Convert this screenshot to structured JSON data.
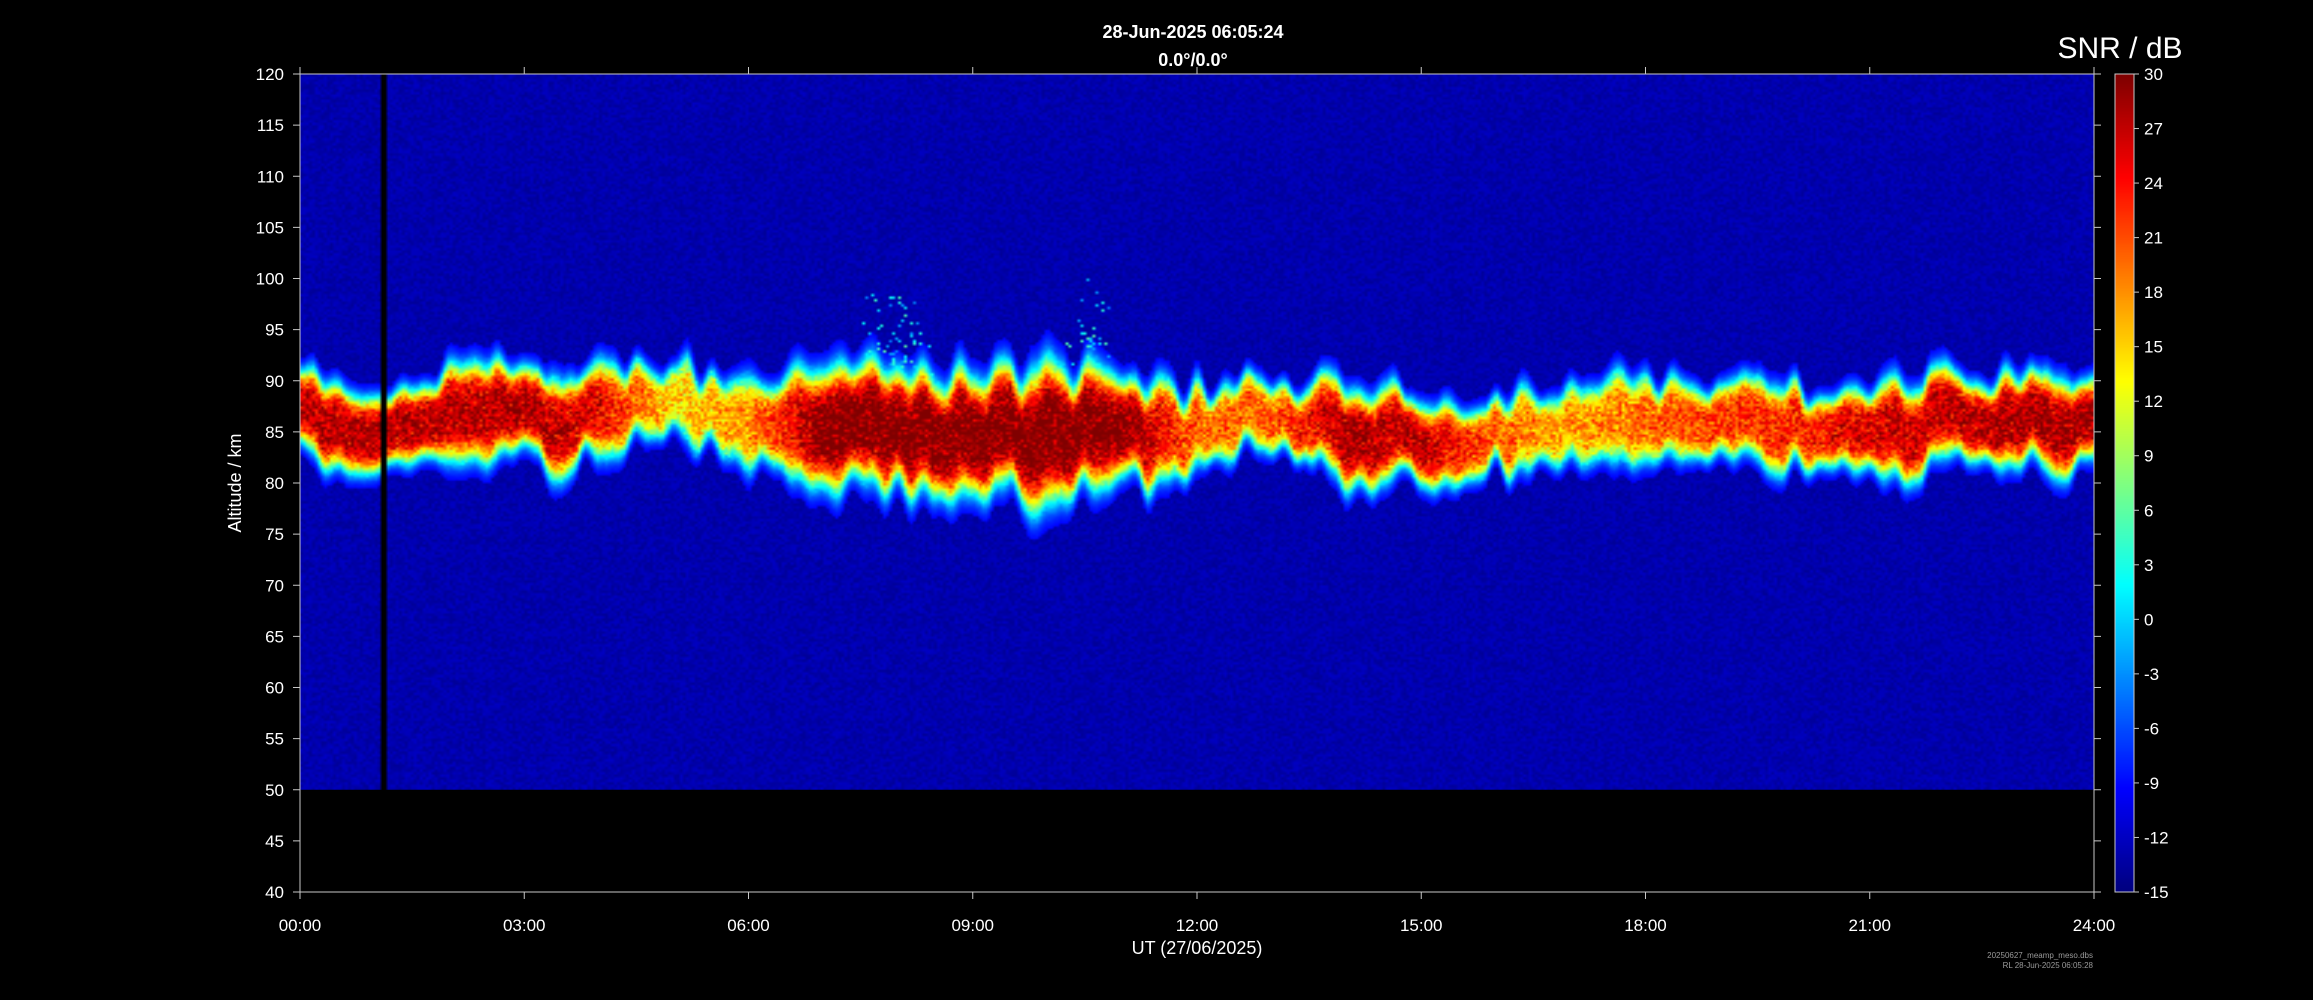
{
  "chart_data": {
    "type": "heatmap",
    "title": "28-Jun-2025 06:05:24",
    "subtitle": "0.0°/0.0°",
    "xlabel": "UT (27/06/2025)",
    "ylabel": "Altitude / km",
    "x_tick_labels": [
      "00:00",
      "03:00",
      "06:00",
      "09:00",
      "12:00",
      "15:00",
      "18:00",
      "21:00",
      "24:00"
    ],
    "x_range_hours": [
      0,
      24
    ],
    "y_ticks": [
      40,
      45,
      50,
      55,
      60,
      65,
      70,
      75,
      80,
      85,
      90,
      95,
      100,
      105,
      110,
      115,
      120
    ],
    "y_range_km": [
      40,
      120
    ],
    "data_altitude_range_km": [
      50,
      120
    ],
    "background_snr_db": -13,
    "colorbar": {
      "title": "SNR / dB",
      "range": [
        -15,
        30
      ],
      "ticks": [
        -15,
        -12,
        -9,
        -6,
        -3,
        0,
        3,
        6,
        9,
        12,
        15,
        18,
        21,
        24,
        27,
        30
      ],
      "colormap": "jet"
    },
    "data_gap_hours": [
      1.08,
      1.16
    ],
    "echo_layer": {
      "description_hours": "center altitude (km) and thickness (km) of the echo layer versus time",
      "center_alt_km": [
        [
          0.0,
          86.5
        ],
        [
          0.5,
          85.5
        ],
        [
          1.0,
          85.0
        ],
        [
          1.5,
          86.0
        ],
        [
          2.0,
          86.5
        ],
        [
          2.5,
          87.0
        ],
        [
          3.0,
          87.0
        ],
        [
          3.5,
          86.0
        ],
        [
          4.0,
          86.5
        ],
        [
          4.5,
          88.0
        ],
        [
          5.0,
          87.5
        ],
        [
          5.5,
          87.0
        ],
        [
          6.0,
          86.5
        ],
        [
          6.5,
          86.0
        ],
        [
          7.0,
          85.5
        ],
        [
          7.5,
          85.5
        ],
        [
          8.0,
          85.0
        ],
        [
          8.5,
          84.5
        ],
        [
          9.0,
          85.0
        ],
        [
          9.5,
          85.0
        ],
        [
          10.0,
          84.5
        ],
        [
          10.5,
          85.0
        ],
        [
          11.0,
          85.0
        ],
        [
          11.5,
          84.5
        ],
        [
          12.0,
          85.0
        ],
        [
          12.5,
          86.5
        ],
        [
          13.0,
          87.0
        ],
        [
          13.5,
          86.0
        ],
        [
          14.0,
          85.0
        ],
        [
          14.5,
          84.5
        ],
        [
          15.0,
          84.5
        ],
        [
          15.5,
          84.0
        ],
        [
          16.0,
          84.5
        ],
        [
          16.5,
          85.0
        ],
        [
          17.0,
          85.5
        ],
        [
          17.5,
          86.0
        ],
        [
          18.0,
          86.0
        ],
        [
          18.5,
          86.5
        ],
        [
          19.0,
          86.5
        ],
        [
          19.5,
          86.0
        ],
        [
          20.0,
          85.5
        ],
        [
          20.5,
          85.0
        ],
        [
          21.0,
          85.0
        ],
        [
          21.5,
          85.5
        ],
        [
          22.0,
          86.0
        ],
        [
          22.5,
          86.0
        ],
        [
          23.0,
          86.5
        ],
        [
          23.5,
          86.0
        ],
        [
          24.0,
          85.5
        ]
      ],
      "thickness_km": [
        [
          0.0,
          8
        ],
        [
          1.0,
          7
        ],
        [
          2.0,
          8
        ],
        [
          3.0,
          9
        ],
        [
          4.0,
          8
        ],
        [
          5.0,
          7
        ],
        [
          6.0,
          8
        ],
        [
          7.0,
          11
        ],
        [
          8.0,
          12
        ],
        [
          9.0,
          11
        ],
        [
          10.0,
          12
        ],
        [
          11.0,
          10
        ],
        [
          12.0,
          7
        ],
        [
          13.0,
          7
        ],
        [
          14.0,
          8
        ],
        [
          15.0,
          8
        ],
        [
          16.0,
          7
        ],
        [
          17.0,
          7
        ],
        [
          18.0,
          8
        ],
        [
          19.0,
          8
        ],
        [
          20.0,
          7
        ],
        [
          21.0,
          8
        ],
        [
          22.0,
          8
        ],
        [
          23.0,
          8
        ],
        [
          24.0,
          8
        ]
      ],
      "peak_snr_db": [
        [
          0.0,
          27
        ],
        [
          1.0,
          28
        ],
        [
          2.0,
          27
        ],
        [
          3.0,
          28
        ],
        [
          4.0,
          25
        ],
        [
          5.0,
          15
        ],
        [
          6.0,
          18
        ],
        [
          7.0,
          30
        ],
        [
          8.0,
          30
        ],
        [
          9.0,
          30
        ],
        [
          10.0,
          30
        ],
        [
          11.0,
          30
        ],
        [
          12.0,
          20
        ],
        [
          13.0,
          20
        ],
        [
          14.0,
          28
        ],
        [
          15.0,
          27
        ],
        [
          16.0,
          20
        ],
        [
          17.0,
          17
        ],
        [
          18.0,
          20
        ],
        [
          19.0,
          22
        ],
        [
          20.0,
          23
        ],
        [
          21.0,
          26
        ],
        [
          22.0,
          27
        ],
        [
          23.0,
          28
        ],
        [
          24.0,
          28
        ]
      ]
    }
  },
  "footer": {
    "line1": "20250627_meamp_meso.dbs",
    "line2": "RL 28-Jun-2025 06:05:28"
  }
}
